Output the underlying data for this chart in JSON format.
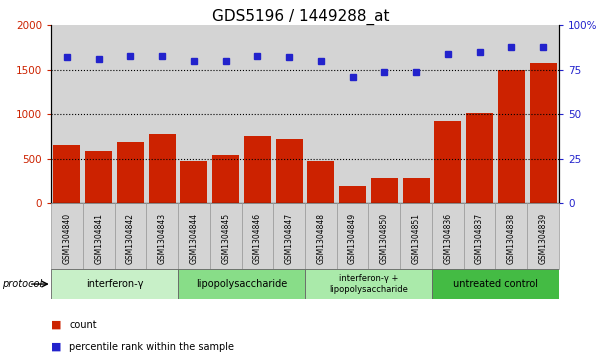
{
  "title": "GDS5196 / 1449288_at",
  "samples": [
    "GSM1304840",
    "GSM1304841",
    "GSM1304842",
    "GSM1304843",
    "GSM1304844",
    "GSM1304845",
    "GSM1304846",
    "GSM1304847",
    "GSM1304848",
    "GSM1304849",
    "GSM1304850",
    "GSM1304851",
    "GSM1304836",
    "GSM1304837",
    "GSM1304838",
    "GSM1304839"
  ],
  "counts": [
    650,
    590,
    690,
    780,
    480,
    540,
    760,
    720,
    470,
    195,
    280,
    285,
    930,
    1020,
    1500,
    1580
  ],
  "percentile": [
    82,
    81,
    83,
    83,
    80,
    80,
    83,
    82,
    80,
    71,
    74,
    74,
    84,
    85,
    88,
    88
  ],
  "protocol_groups": [
    {
      "label": "interferon-γ",
      "start": 0,
      "end": 3,
      "color": "#c8f0c8"
    },
    {
      "label": "lipopolysaccharide",
      "start": 4,
      "end": 7,
      "color": "#88dd88"
    },
    {
      "label": "interferon-γ +\nlipopolysaccharide",
      "start": 8,
      "end": 11,
      "color": "#aaeaaa"
    },
    {
      "label": "untreated control",
      "start": 12,
      "end": 15,
      "color": "#44bb44"
    }
  ],
  "bar_color": "#cc2200",
  "dot_color": "#2222cc",
  "left_ylim": [
    0,
    2000
  ],
  "right_ylim": [
    0,
    100
  ],
  "left_yticks": [
    0,
    500,
    1000,
    1500,
    2000
  ],
  "right_yticks": [
    0,
    25,
    50,
    75,
    100
  ],
  "right_yticklabels": [
    "0",
    "25",
    "50",
    "75",
    "100%"
  ],
  "grid_values": [
    500,
    1000,
    1500
  ],
  "title_fontsize": 11,
  "tick_label_color": "#555555",
  "protocol_label": "protocol"
}
